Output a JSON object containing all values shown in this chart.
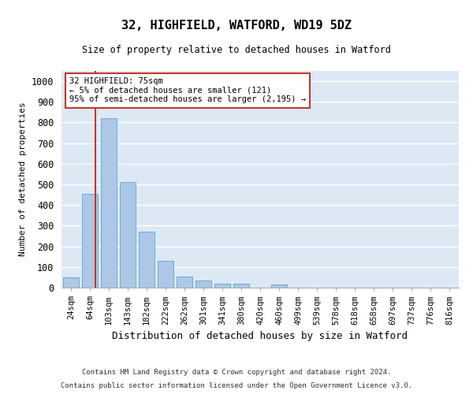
{
  "title1": "32, HIGHFIELD, WATFORD, WD19 5DZ",
  "title2": "Size of property relative to detached houses in Watford",
  "xlabel": "Distribution of detached houses by size in Watford",
  "ylabel": "Number of detached properties",
  "categories": [
    "24sqm",
    "64sqm",
    "103sqm",
    "143sqm",
    "182sqm",
    "222sqm",
    "262sqm",
    "301sqm",
    "341sqm",
    "380sqm",
    "420sqm",
    "460sqm",
    "499sqm",
    "539sqm",
    "578sqm",
    "618sqm",
    "658sqm",
    "697sqm",
    "737sqm",
    "776sqm",
    "816sqm"
  ],
  "bar_heights": [
    50,
    455,
    820,
    510,
    270,
    130,
    55,
    35,
    20,
    20,
    0,
    15,
    0,
    0,
    0,
    0,
    0,
    0,
    0,
    0,
    0
  ],
  "bar_color": "#adc8e6",
  "bar_edge_color": "#6aaad4",
  "bg_color": "#dce9f5",
  "grid_color": "#ffffff",
  "vline_color": "#c0392b",
  "annotation_text": "32 HIGHFIELD: 75sqm\n← 5% of detached houses are smaller (121)\n95% of semi-detached houses are larger (2,195) →",
  "annotation_box_color": "#c0392b",
  "footnote1": "Contains HM Land Registry data © Crown copyright and database right 2024.",
  "footnote2": "Contains public sector information licensed under the Open Government Licence v3.0.",
  "ylim": [
    0,
    1050
  ],
  "yticks": [
    0,
    100,
    200,
    300,
    400,
    500,
    600,
    700,
    800,
    900,
    1000
  ],
  "vline_x": 1.28
}
